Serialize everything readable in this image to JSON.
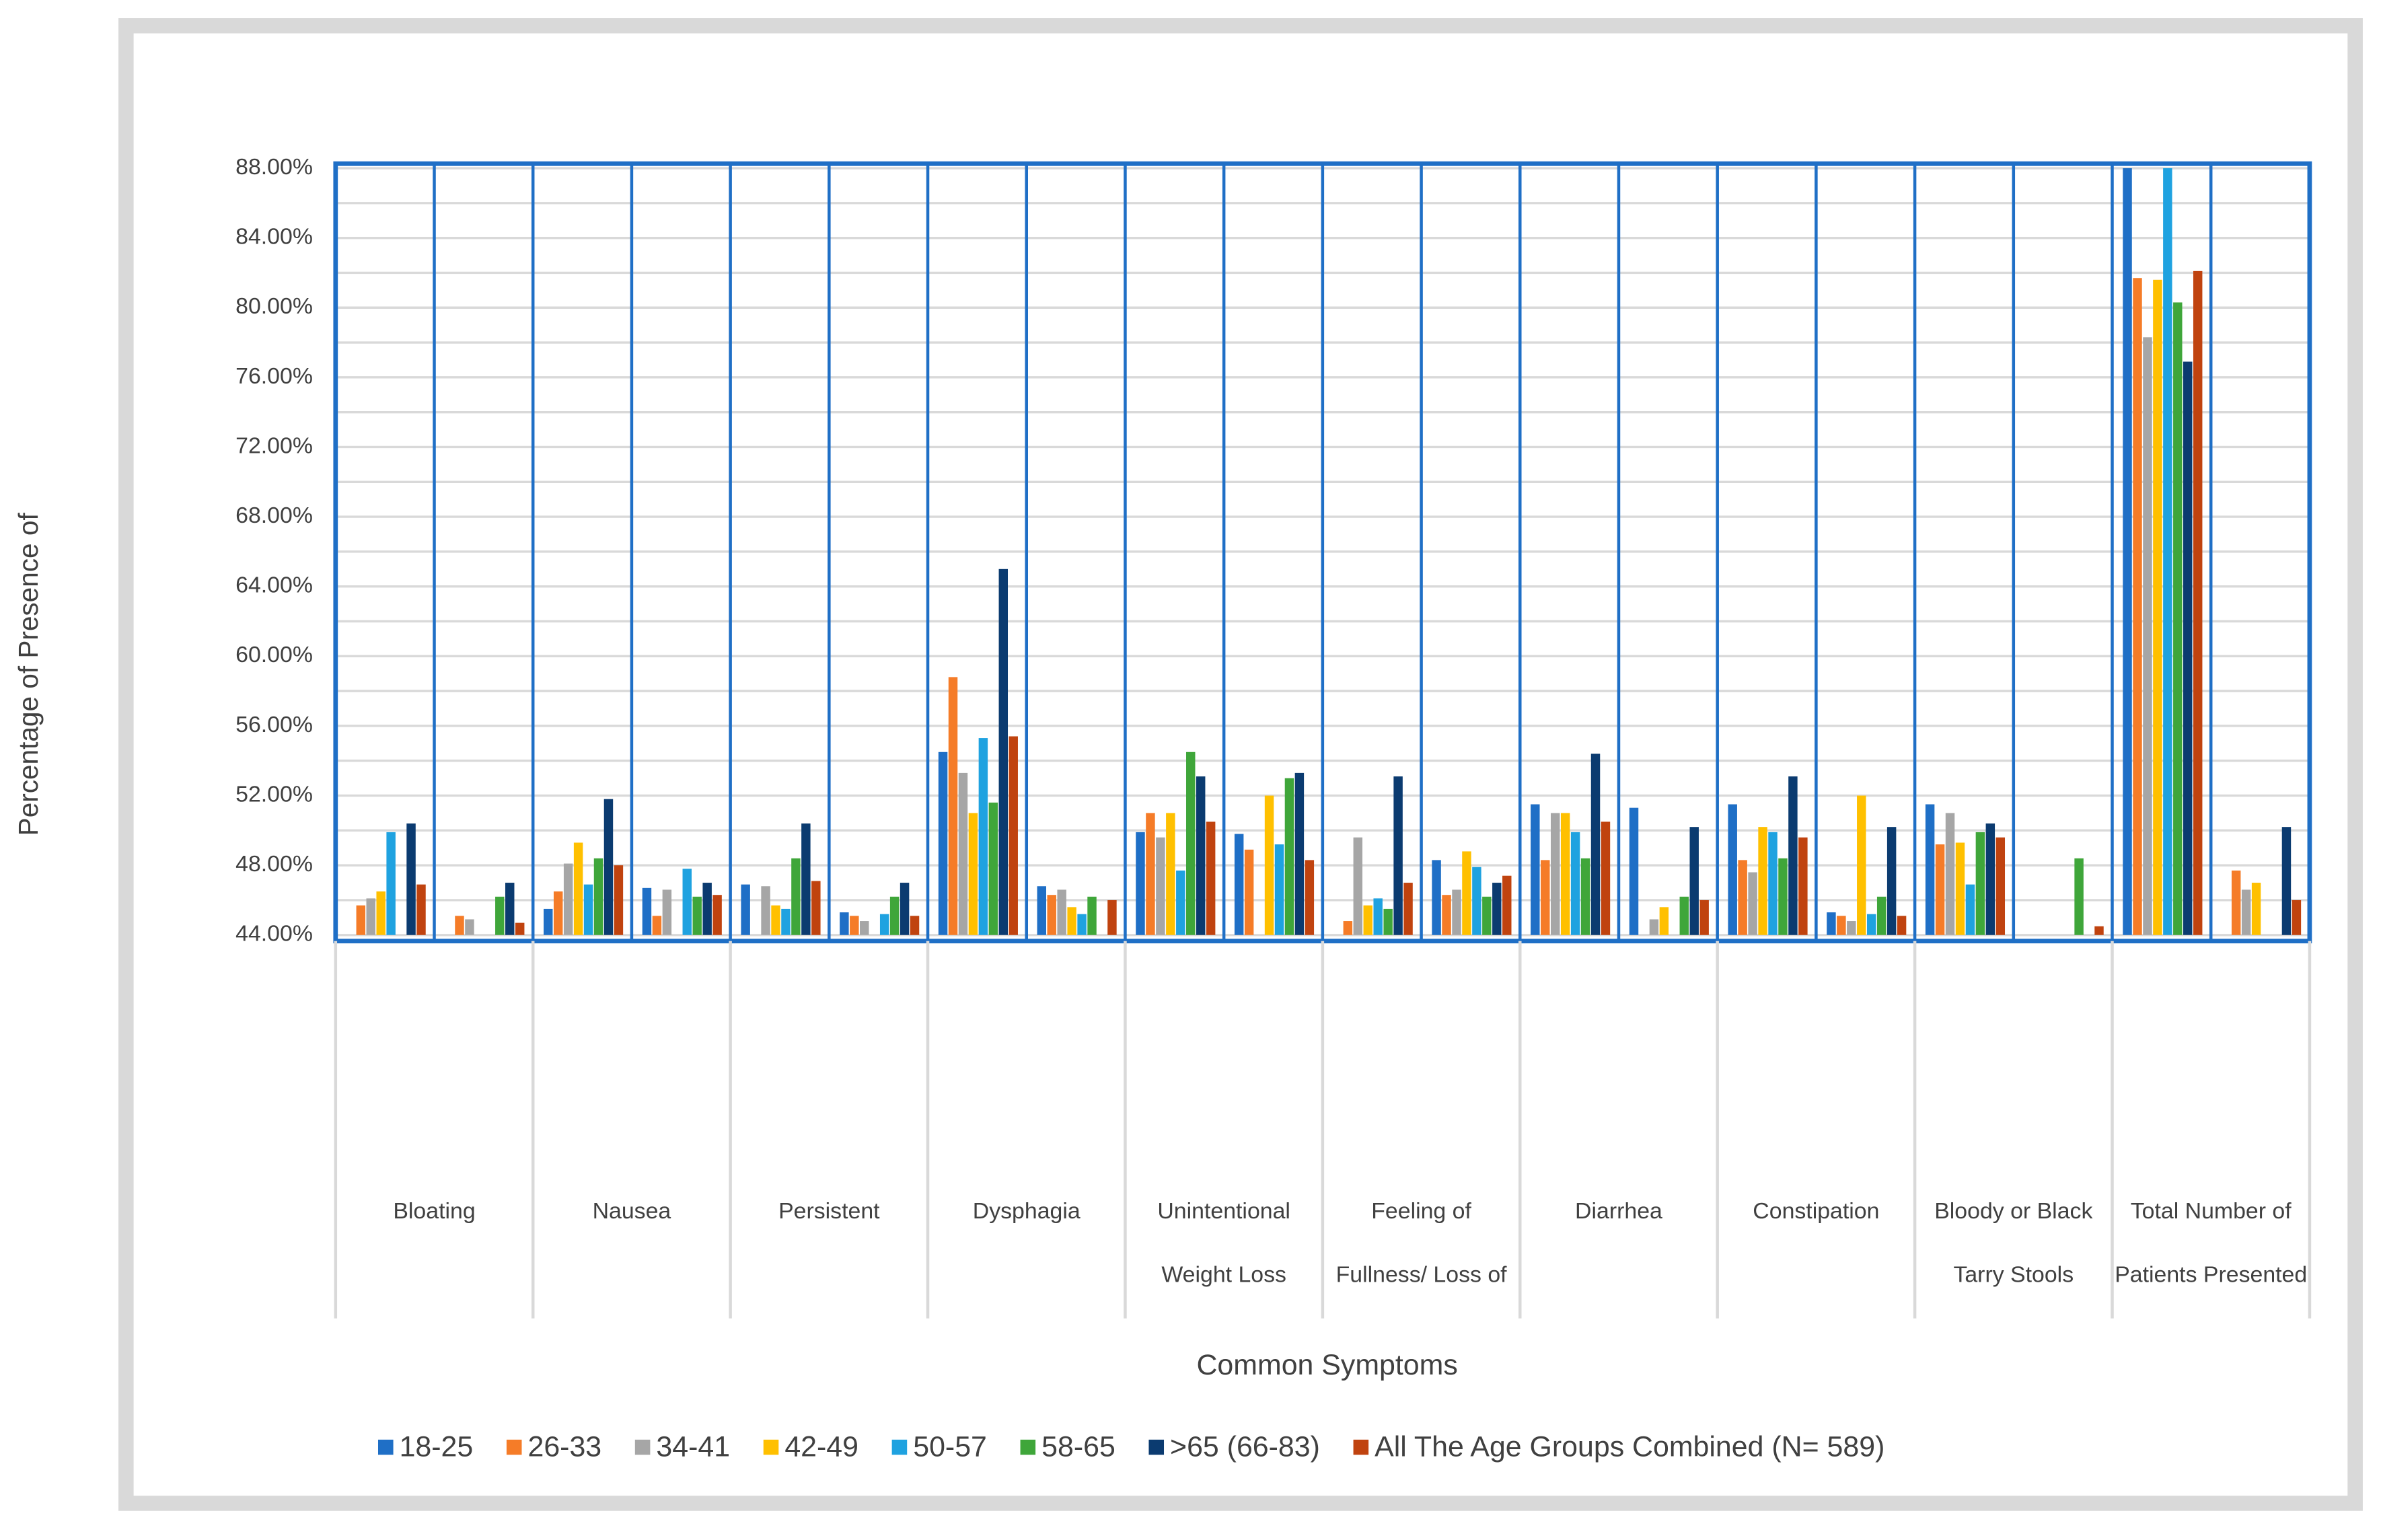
{
  "chart_data": {
    "type": "bar",
    "y_label": "Percentage of Presence of",
    "x_label": "Common Symptoms",
    "categories": [
      null,
      null,
      null,
      null,
      null,
      null,
      null,
      null,
      null,
      null,
      null,
      null,
      null,
      null,
      null,
      null,
      null,
      null,
      null,
      null
    ],
    "groups": [
      [
        "Bloating"
      ],
      [
        "Nausea"
      ],
      [
        "Persistent"
      ],
      [
        "Dysphagia"
      ],
      [
        "Unintentional",
        "Weight Loss"
      ],
      [
        "Feeling of",
        "Fullness/ Loss of"
      ],
      [
        "Diarrhea"
      ],
      [
        "Constipation"
      ],
      [
        "Bloody or Black",
        "Tarry Stools"
      ],
      [
        "Total Number of",
        "Patients Presented"
      ]
    ],
    "ylim": [
      44,
      88
    ],
    "yticks": [
      {
        "value": 44,
        "label": "44.00%"
      },
      {
        "value": 48,
        "label": "48.00%"
      },
      {
        "value": 52,
        "label": "52.00%"
      },
      {
        "value": 56,
        "label": "56.00%"
      },
      {
        "value": 60,
        "label": "60.00%"
      },
      {
        "value": 64,
        "label": "64.00%"
      },
      {
        "value": 68,
        "label": "68.00%"
      },
      {
        "value": 72,
        "label": "72.00%"
      },
      {
        "value": 76,
        "label": "76.00%"
      },
      {
        "value": 80,
        "label": "80.00%"
      },
      {
        "value": 84,
        "label": "84.00%"
      },
      {
        "value": 88,
        "label": "88.00%"
      }
    ],
    "minor_yticks": [
      46,
      50,
      54,
      58,
      62,
      66,
      70,
      74,
      78,
      82,
      86
    ],
    "grid": true,
    "legend": "bottom",
    "series": [
      {
        "name": "18-25",
        "color": "#1f6fc6",
        "values": [
          null,
          null,
          45.5,
          46.7,
          46.9,
          45.3,
          54.5,
          46.8,
          49.9,
          49.8,
          null,
          48.3,
          51.5,
          51.3,
          51.5,
          45.3,
          51.5,
          null,
          88.0,
          null
        ]
      },
      {
        "name": "26-33",
        "color": "#f57c28",
        "values": [
          45.7,
          45.1,
          46.5,
          45.1,
          null,
          45.1,
          58.8,
          46.3,
          51.0,
          48.9,
          44.8,
          46.3,
          48.3,
          null,
          48.3,
          45.1,
          49.2,
          null,
          81.7,
          47.7
        ]
      },
      {
        "name": "34-41",
        "color": "#a6a6a6",
        "values": [
          46.1,
          44.9,
          48.1,
          46.6,
          46.8,
          44.8,
          53.3,
          46.6,
          49.6,
          null,
          49.6,
          46.6,
          51.0,
          44.9,
          47.6,
          44.8,
          51.0,
          null,
          78.3,
          46.6
        ]
      },
      {
        "name": "42-49",
        "color": "#ffc000",
        "values": [
          46.5,
          null,
          49.3,
          null,
          45.7,
          null,
          51.0,
          45.6,
          51.0,
          52.0,
          45.7,
          48.8,
          51.0,
          45.6,
          50.2,
          52.0,
          49.3,
          null,
          81.6,
          47.0
        ]
      },
      {
        "name": "50-57",
        "color": "#1fa2e0",
        "values": [
          49.9,
          null,
          46.9,
          47.8,
          45.5,
          45.2,
          55.3,
          45.2,
          47.7,
          49.2,
          46.1,
          47.9,
          49.9,
          null,
          49.9,
          45.2,
          46.9,
          null,
          88.0,
          null
        ]
      },
      {
        "name": "58-65",
        "color": "#3fa63a",
        "values": [
          null,
          46.2,
          48.4,
          46.2,
          48.4,
          46.2,
          51.6,
          46.2,
          54.5,
          53.0,
          45.5,
          46.2,
          48.4,
          46.2,
          48.4,
          46.2,
          49.9,
          48.4,
          80.3,
          null
        ]
      },
      {
        "name": ">65 (66-83)",
        "color": "#0b3b70",
        "values": [
          50.4,
          47.0,
          51.8,
          47.0,
          50.4,
          47.0,
          65.0,
          null,
          53.1,
          53.3,
          53.1,
          47.0,
          54.4,
          50.2,
          53.1,
          50.2,
          50.4,
          null,
          76.9,
          50.2
        ]
      },
      {
        "name": "All The Age Groups Combined (N= 589)",
        "color": "#c0430f",
        "values": [
          46.9,
          44.7,
          48.0,
          46.3,
          47.1,
          45.1,
          55.4,
          46.0,
          50.5,
          48.3,
          47.0,
          47.4,
          50.5,
          46.0,
          49.6,
          45.1,
          49.6,
          44.5,
          82.1,
          46.0
        ]
      }
    ]
  }
}
